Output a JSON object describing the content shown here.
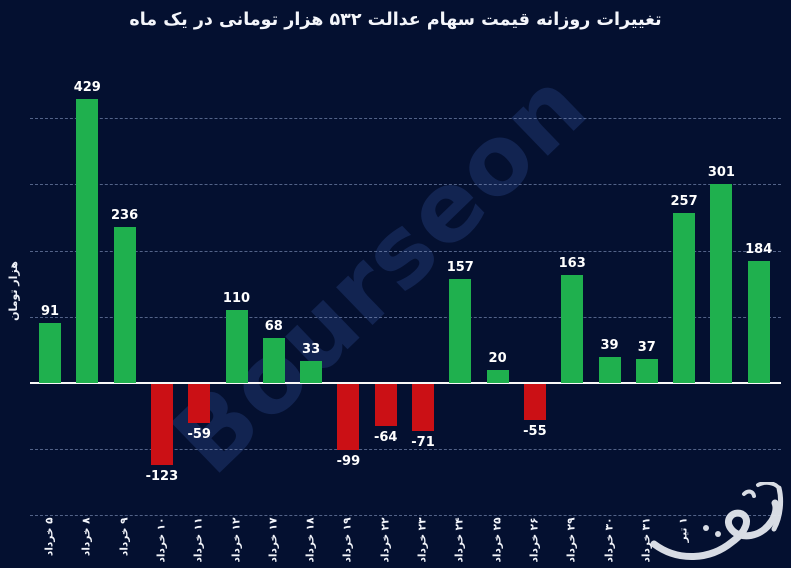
{
  "title": "تغییرات روزانه قیمت سهام عدالت ۵۳۲ هزار تومانی در یک ماه",
  "ylabel": "هزار تومان",
  "watermark": {
    "text": "Bourseon",
    "signature": "calligraphic-signature"
  },
  "colors": {
    "background": "#041030",
    "positive_bar": "#1fb04e",
    "negative_bar": "#cb1015",
    "grid": "#96a8d2",
    "zero_axis": "#f8f8f8",
    "text": "#ffffff",
    "watermark_text": "#122451"
  },
  "chart_data": {
    "type": "bar",
    "title": "تغییرات روزانه قیمت سهام عدالت ۵۳۲ هزار تومانی در یک ماه",
    "xlabel": "",
    "ylabel": "هزار تومان",
    "categories": [
      "۵ خرداد",
      "۸ خرداد",
      "۹ خرداد",
      "۱۰ خرداد",
      "۱۱ خرداد",
      "۱۲ خرداد",
      "۱۷ خرداد",
      "۱۸ خرداد",
      "۱۹ خرداد",
      "۲۲ خرداد",
      "۲۳ خرداد",
      "۲۴ خرداد",
      "۲۵ خرداد",
      "۲۶ خرداد",
      "۲۹ خرداد",
      "۳۰ خرداد",
      "۳۱ خرداد",
      "۱ تیر",
      "",
      ""
    ],
    "values": [
      91,
      429,
      236,
      -123,
      -59,
      110,
      68,
      33,
      -99,
      -64,
      -71,
      157,
      20,
      -55,
      163,
      39,
      37,
      257,
      301,
      184
    ],
    "gridlines": [
      400,
      300,
      200,
      100,
      -100,
      -200
    ],
    "ylim": [
      -200,
      450
    ],
    "grid": "dashed horizontal",
    "legend": "none",
    "value_labels": "shown above positive bars and below negative bars, latin digits"
  }
}
